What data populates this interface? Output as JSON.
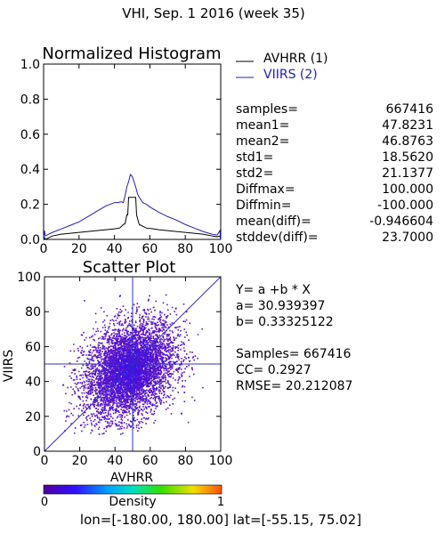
{
  "page_title": "VHI,  Sep. 1 2016 (week 35)",
  "colors": {
    "avhrr_line": "#000000",
    "viirs_line": "#1f1fb4",
    "scatter_point": "#5a14c8",
    "reference_line": "#3030c0"
  },
  "chart_data": [
    {
      "type": "line",
      "title": "Normalized Histogram",
      "xlim": [
        0,
        100
      ],
      "ylim": [
        0,
        1.0
      ],
      "x_ticks": [
        "0",
        "20",
        "40",
        "60",
        "80",
        "100"
      ],
      "y_ticks": [
        "0.0",
        "0.2",
        "0.4",
        "0.6",
        "0.8",
        "1.0"
      ],
      "series": [
        {
          "name": "AVHRR (1)",
          "color": "#000000",
          "points": [
            [
              0,
              0.0
            ],
            [
              0.5,
              0.01
            ],
            [
              1,
              0.0
            ],
            [
              5,
              0.02
            ],
            [
              10,
              0.03
            ],
            [
              15,
              0.035
            ],
            [
              20,
              0.04
            ],
            [
              25,
              0.045
            ],
            [
              30,
              0.05
            ],
            [
              35,
              0.055
            ],
            [
              40,
              0.06
            ],
            [
              43,
              0.065
            ],
            [
              44,
              0.075
            ],
            [
              45,
              0.085
            ],
            [
              46,
              0.09
            ],
            [
              47,
              0.14
            ],
            [
              47.5,
              0.14
            ],
            [
              48,
              0.24
            ],
            [
              52,
              0.24
            ],
            [
              52.5,
              0.14
            ],
            [
              53,
              0.12
            ],
            [
              54,
              0.085
            ],
            [
              55,
              0.08
            ],
            [
              56,
              0.075
            ],
            [
              58,
              0.065
            ],
            [
              62,
              0.06
            ],
            [
              65,
              0.055
            ],
            [
              70,
              0.05
            ],
            [
              75,
              0.045
            ],
            [
              80,
              0.04
            ],
            [
              85,
              0.035
            ],
            [
              90,
              0.03
            ],
            [
              95,
              0.02
            ],
            [
              98,
              0.015
            ],
            [
              99.5,
              0.02
            ],
            [
              100,
              0.0
            ]
          ]
        },
        {
          "name": "VIIRS (2)",
          "color": "#1f1fb4",
          "points": [
            [
              0,
              0.0
            ],
            [
              0.5,
              0.05
            ],
            [
              1,
              0.02
            ],
            [
              3,
              0.03
            ],
            [
              5,
              0.04
            ],
            [
              10,
              0.06
            ],
            [
              15,
              0.08
            ],
            [
              20,
              0.1
            ],
            [
              25,
              0.13
            ],
            [
              30,
              0.16
            ],
            [
              35,
              0.19
            ],
            [
              40,
              0.21
            ],
            [
              42,
              0.21
            ],
            [
              44,
              0.215
            ],
            [
              45,
              0.21
            ],
            [
              46,
              0.25
            ],
            [
              47,
              0.3
            ],
            [
              48,
              0.33
            ],
            [
              49,
              0.37
            ],
            [
              50,
              0.36
            ],
            [
              51,
              0.33
            ],
            [
              52,
              0.3
            ],
            [
              53,
              0.26
            ],
            [
              54,
              0.24
            ],
            [
              55,
              0.225
            ],
            [
              56,
              0.21
            ],
            [
              58,
              0.2
            ],
            [
              60,
              0.185
            ],
            [
              65,
              0.155
            ],
            [
              70,
              0.13
            ],
            [
              75,
              0.11
            ],
            [
              80,
              0.085
            ],
            [
              85,
              0.065
            ],
            [
              90,
              0.045
            ],
            [
              95,
              0.03
            ],
            [
              98,
              0.025
            ],
            [
              99.5,
              0.05
            ],
            [
              100,
              0.0
            ]
          ]
        }
      ]
    },
    {
      "type": "scatter",
      "title": "Scatter Plot",
      "xlabel": "AVHRR",
      "ylabel": "VIIRS",
      "xlim": [
        0,
        100
      ],
      "ylim": [
        0,
        100
      ],
      "x_ticks": [
        "0",
        "20",
        "40",
        "60",
        "80",
        "100"
      ],
      "y_ticks": [
        "0",
        "20",
        "40",
        "60",
        "80",
        "100"
      ],
      "cloud": {
        "center_x": 48,
        "center_y": 47,
        "spread_x": 13,
        "spread_y": 14,
        "correlation": 0.29,
        "x_range": [
          10,
          90
        ],
        "y_range": [
          10,
          90
        ]
      },
      "regression": {
        "a": 30.939397,
        "b": 0.33325122
      },
      "mean_crosshair": {
        "x": 50,
        "y": 50
      },
      "colorbar": {
        "label": "Density",
        "min": "0",
        "max": "1"
      }
    }
  ],
  "stats": [
    {
      "label": "samples=",
      "value": "667416"
    },
    {
      "label": "mean1=",
      "value": "47.8231"
    },
    {
      "label": "mean2=",
      "value": "46.8763"
    },
    {
      "label": "std1=",
      "value": "18.5620"
    },
    {
      "label": "std2=",
      "value": "21.1377"
    },
    {
      "label": "Diffmax=",
      "value": "100.000"
    },
    {
      "label": "Diffmin=",
      "value": "-100.000"
    },
    {
      "label": "mean(diff)=",
      "value": "-0.946604"
    },
    {
      "label": "stddev(diff)=",
      "value": "23.7000"
    }
  ],
  "regression_text": {
    "equation": "Y= a +b * X",
    "a_line": "a= 30.939397",
    "b_line": "b= 0.33325122",
    "samples_line": "Samples= 667416",
    "cc_line": "CC=  0.2927",
    "rmse_line": "RMSE= 20.212087"
  },
  "footer": "lon=[-180.00, 180.00] lat=[-55.15, 75.02]"
}
